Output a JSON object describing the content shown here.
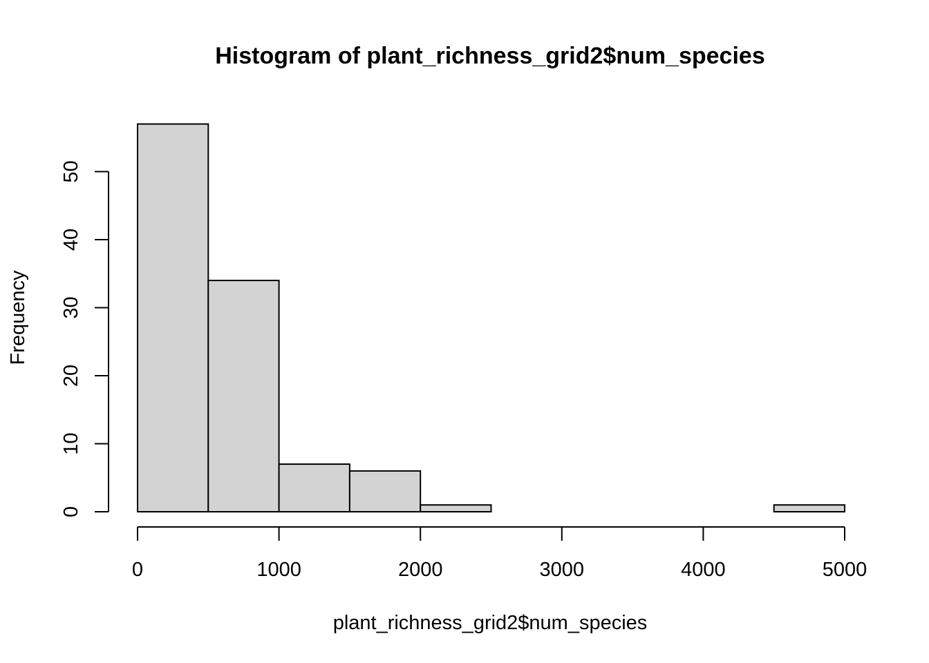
{
  "chart_data": {
    "type": "bar",
    "title": "Histogram of plant_richness_grid2$num_species",
    "xlabel": "plant_richness_grid2$num_species",
    "ylabel": "Frequency",
    "bins": [
      {
        "start": 0,
        "end": 500,
        "count": 57
      },
      {
        "start": 500,
        "end": 1000,
        "count": 34
      },
      {
        "start": 1000,
        "end": 1500,
        "count": 7
      },
      {
        "start": 1500,
        "end": 2000,
        "count": 6
      },
      {
        "start": 2000,
        "end": 2500,
        "count": 1
      },
      {
        "start": 2500,
        "end": 3000,
        "count": 0
      },
      {
        "start": 3000,
        "end": 3500,
        "count": 0
      },
      {
        "start": 3500,
        "end": 4000,
        "count": 0
      },
      {
        "start": 4000,
        "end": 4500,
        "count": 0
      },
      {
        "start": 4500,
        "end": 5000,
        "count": 1
      }
    ],
    "xlim": [
      0,
      5000
    ],
    "ylim": [
      0,
      57
    ],
    "x_ticks": [
      "0",
      "1000",
      "2000",
      "3000",
      "4000",
      "5000"
    ],
    "y_ticks": [
      "0",
      "10",
      "20",
      "30",
      "40",
      "50"
    ],
    "bar_fill": "#d3d3d3",
    "bar_stroke": "#000000",
    "grid": false,
    "legend": "none"
  }
}
